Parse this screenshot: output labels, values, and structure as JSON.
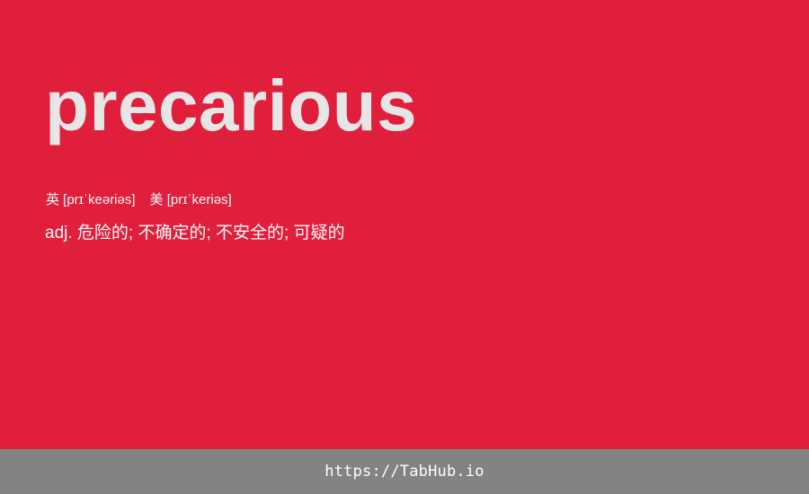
{
  "entry": {
    "word": "precarious",
    "phonetics": {
      "uk": "英 [prɪˈkeəriəs]",
      "us": "美 [prɪˈkeriəs]"
    },
    "definition": "adj. 危险的; 不确定的; 不安全的; 可疑的"
  },
  "footer": {
    "link_text": "https://TabHub.io"
  },
  "colors": {
    "background": "#e01f3d",
    "word": "#e6e6e6",
    "footer_bar": "#838383"
  }
}
